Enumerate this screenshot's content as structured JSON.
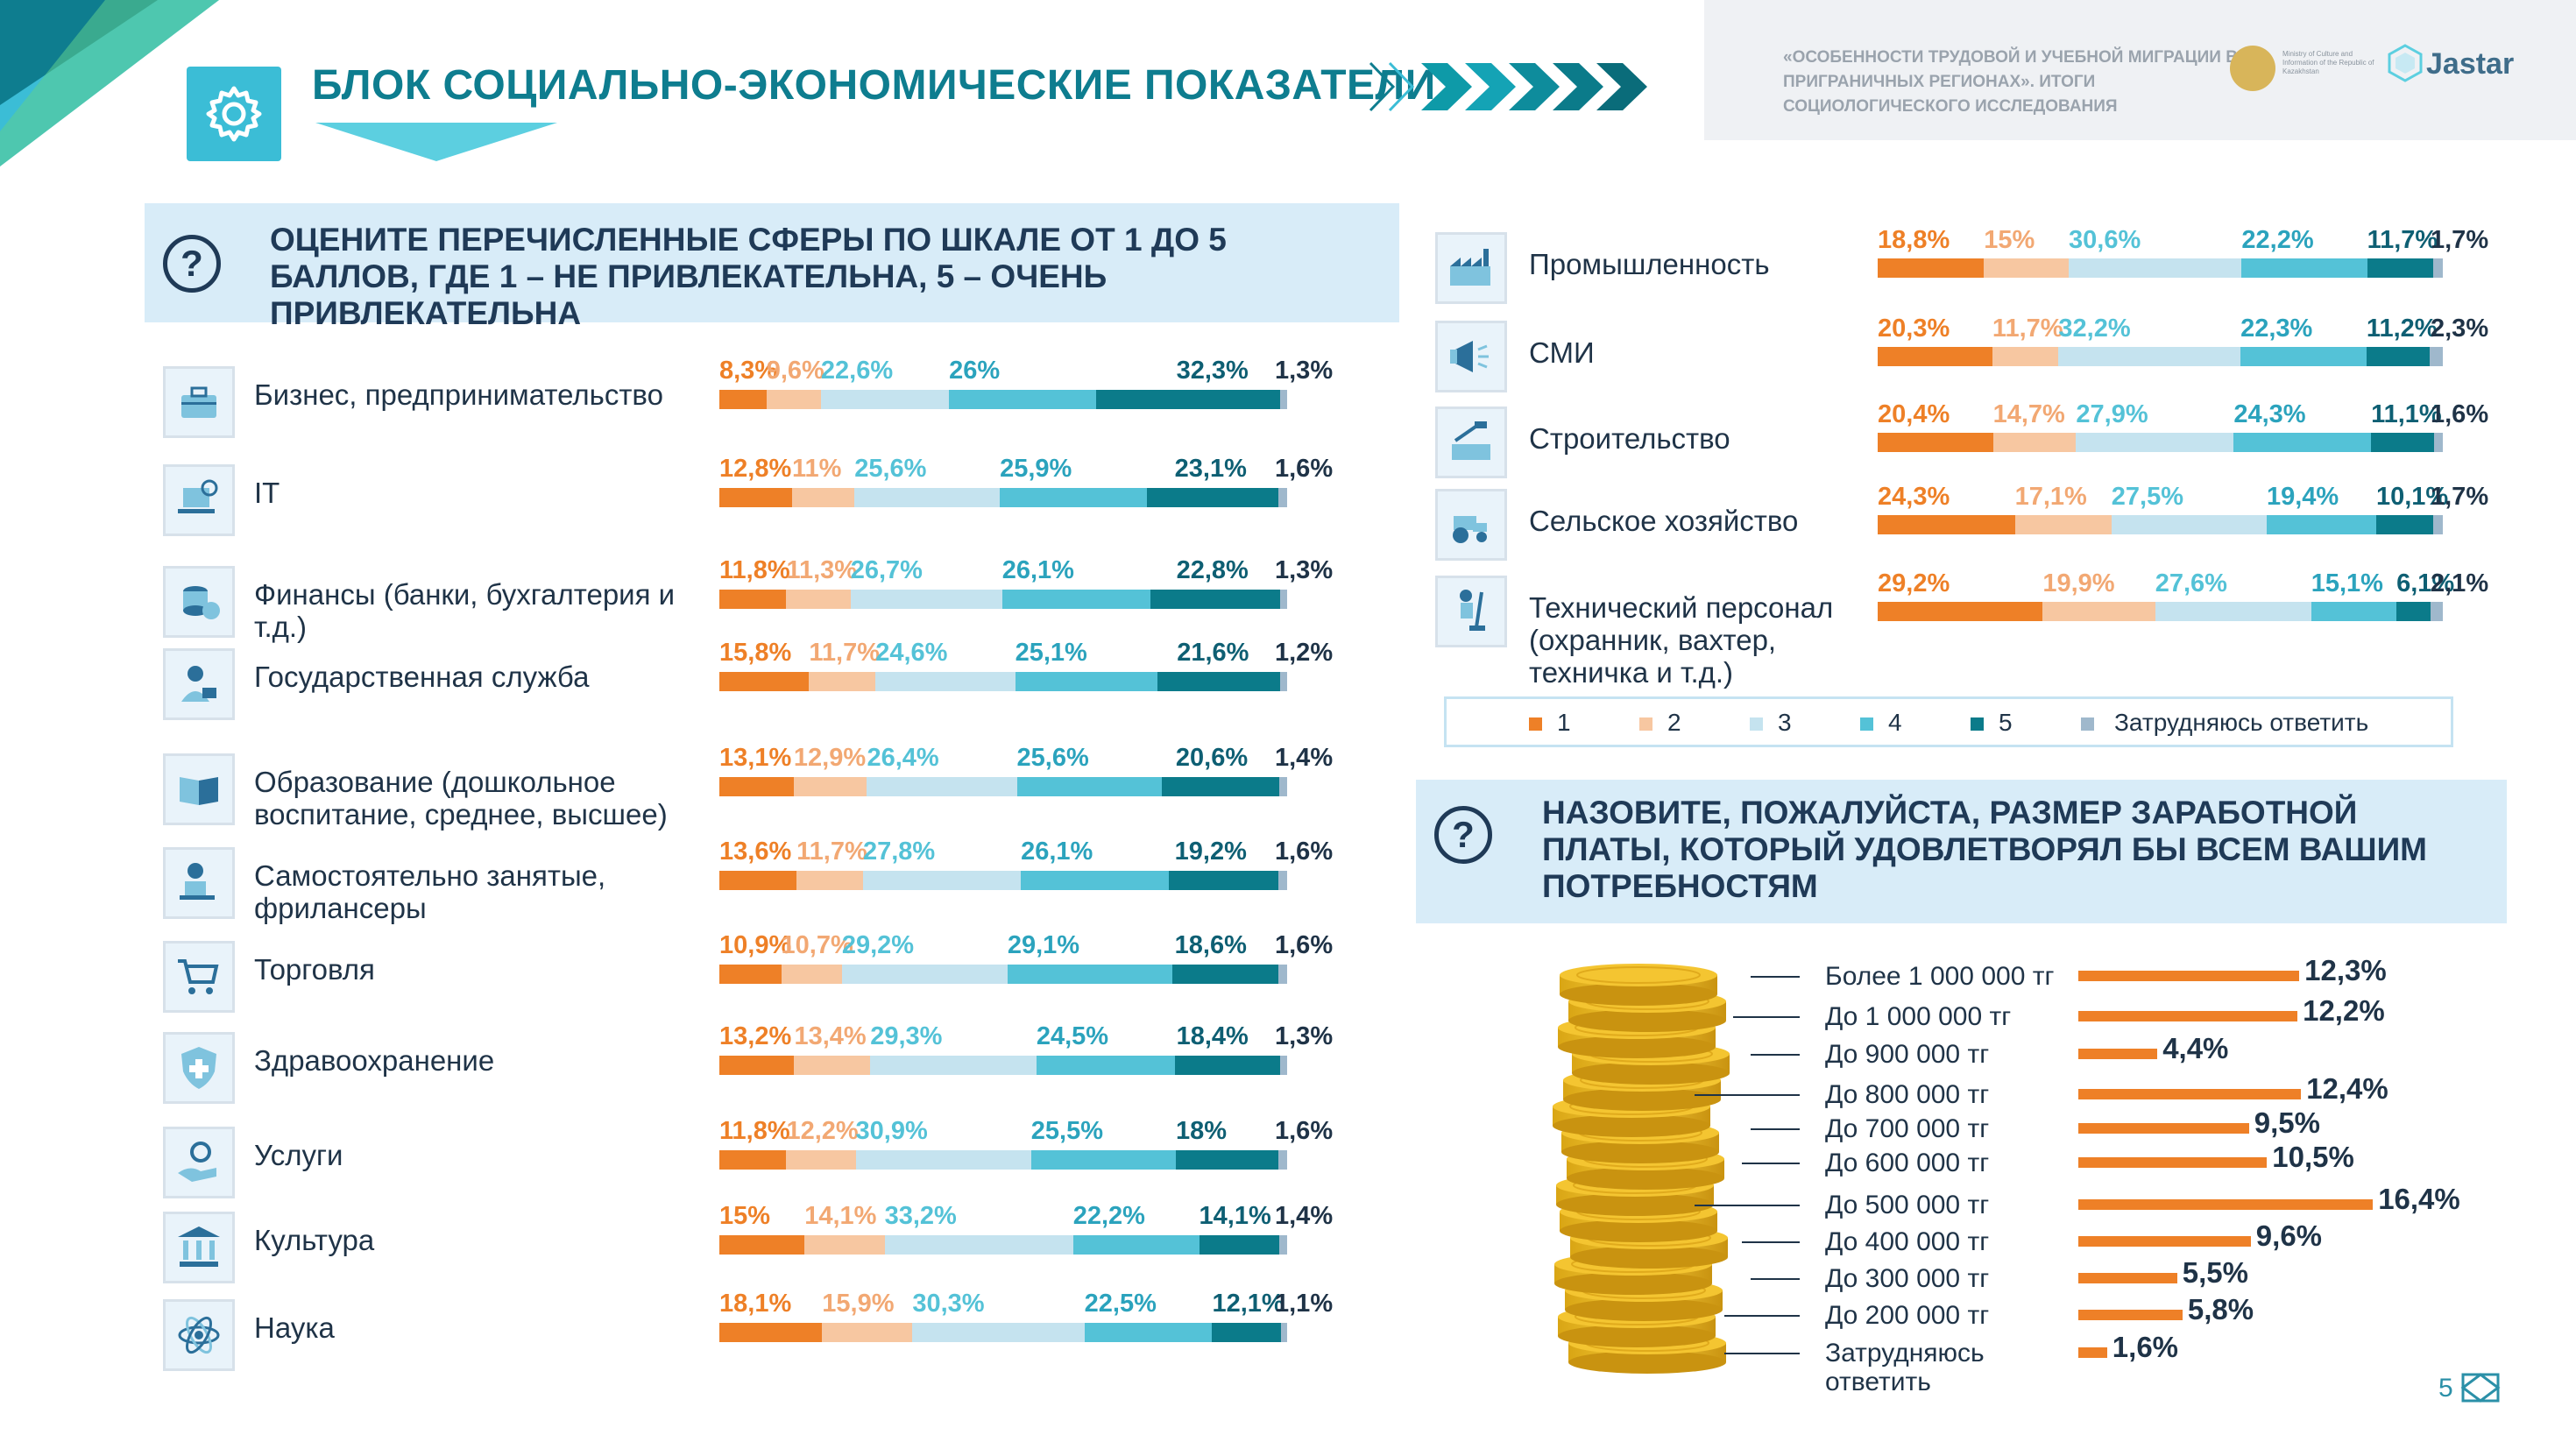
{
  "header": {
    "title": "БЛОК СОЦИАЛЬНО-ЭКОНОМИЧЕСКИЕ ПОКАЗАТЕЛИ",
    "brand_text": "«ОСОБЕННОСТИ ТРУДОВОЙ И УЧЕБНОЙ МИГРАЦИИ В ПРИГРАНИЧНЫХ РЕГИОНАХ». ИТОГИ СОЦИОЛОГИЧЕСКОГО ИССЛЕДОВАНИЯ",
    "emblem_text": "Ministry of Culture and Information of the Republic of Kazakhstan",
    "logo_text": "Jastar"
  },
  "question1": {
    "mark": "?",
    "text": "ОЦЕНИТЕ ПЕРЕЧИСЛЕННЫЕ СФЕРЫ ПО ШКАЛЕ ОТ 1 ДО 5 БАЛЛОВ, ГДЕ 1 – НЕ ПРИВЛЕКАТЕЛЬНА, 5 – ОЧЕНЬ ПРИВЛЕКАТЕЛЬНА"
  },
  "question2": {
    "mark": "?",
    "text": "НАЗОВИТЕ, ПОЖАЛУЙСТА, РАЗМЕР ЗАРАБОТНОЙ ПЛАТЫ, КОТОРЫЙ УДОВЛЕТВОРЯЛ БЫ ВСЕМ ВАШИМ ПОТРЕБНОСТЯМ"
  },
  "colors": {
    "c1": "#ee8027",
    "c2": "#f7c7a1",
    "c3": "#c5e3ef",
    "c4": "#54c2d7",
    "c5": "#0b7b8a",
    "c6": "#9fb8cc",
    "label1": "#ee8027",
    "label2": "#f2a873",
    "label3": "#54c2d7",
    "label4": "#2ba3bd",
    "label5": "#0e5f73",
    "label6": "#1f3347"
  },
  "legend": [
    "1",
    "2",
    "3",
    "4",
    "5",
    "Затрудняюсь ответить"
  ],
  "chart_data": [
    {
      "type": "bar",
      "stacked": true,
      "orientation": "horizontal",
      "series_names": [
        "1",
        "2",
        "3",
        "4",
        "5",
        "Затрудняюсь ответить"
      ],
      "categories": [
        {
          "name": "Бизнес, предпринимательство",
          "icon": "briefcase-icon",
          "values": [
            8.3,
            9.6,
            22.6,
            26,
            32.3,
            1.3
          ],
          "labels": [
            "8,3%",
            "9,6%",
            "22,6%",
            "26%",
            "32,3%",
            "1,3%"
          ]
        },
        {
          "name": "IT",
          "icon": "laptop-gear-icon",
          "values": [
            12.8,
            11,
            25.6,
            25.9,
            23.1,
            1.6
          ],
          "labels": [
            "12,8%",
            "11%",
            "25,6%",
            "25,9%",
            "23,1%",
            "1,6%"
          ]
        },
        {
          "name": "Финансы (банки, бухгалтерия и т.д.)",
          "icon": "coins-icon",
          "values": [
            11.8,
            11.3,
            26.7,
            26.1,
            22.8,
            1.3
          ],
          "labels": [
            "11,8%",
            "11,3%",
            "26,7%",
            "26,1%",
            "22,8%",
            "1,3%"
          ]
        },
        {
          "name": "Государственная служба",
          "icon": "official-icon",
          "values": [
            15.8,
            11.7,
            24.6,
            25.1,
            21.6,
            1.2
          ],
          "labels": [
            "15,8%",
            "11,7%",
            "24,6%",
            "25,1%",
            "21,6%",
            "1,2%"
          ]
        },
        {
          "name": "Образование (дошкольное воспитание, среднее, высшее)",
          "icon": "book-icon",
          "values": [
            13.1,
            12.9,
            26.4,
            25.6,
            20.6,
            1.4
          ],
          "labels": [
            "13,1%",
            "12,9%",
            "26,4%",
            "25,6%",
            "20,6%",
            "1,4%"
          ]
        },
        {
          "name": "Самостоятельно занятые, фрилансеры",
          "icon": "freelancer-icon",
          "values": [
            13.6,
            11.7,
            27.8,
            26.1,
            19.2,
            1.6
          ],
          "labels": [
            "13,6%",
            "11,7%",
            "27,8%",
            "26,1%",
            "19,2%",
            "1,6%"
          ]
        },
        {
          "name": "Торговля",
          "icon": "cart-icon",
          "values": [
            10.9,
            10.7,
            29.2,
            29.1,
            18.6,
            1.6
          ],
          "labels": [
            "10,9%",
            "10,7%",
            "29,2%",
            "29,1%",
            "18,6%",
            "1,6%"
          ]
        },
        {
          "name": "Здравоохранение",
          "icon": "medical-shield-icon",
          "values": [
            13.2,
            13.4,
            29.3,
            24.5,
            18.4,
            1.3
          ],
          "labels": [
            "13,2%",
            "13,4%",
            "29,3%",
            "24,5%",
            "18,4%",
            "1,3%"
          ]
        },
        {
          "name": "Услуги",
          "icon": "service-hand-icon",
          "values": [
            11.8,
            12.2,
            30.9,
            25.5,
            18,
            1.6
          ],
          "labels": [
            "11,8%",
            "12,2%",
            "30,9%",
            "25,5%",
            "18%",
            "1,6%"
          ]
        },
        {
          "name": "Культура",
          "icon": "museum-icon",
          "values": [
            15,
            14.1,
            33.2,
            22.2,
            14.1,
            1.4
          ],
          "labels": [
            "15%",
            "14,1%",
            "33,2%",
            "22,2%",
            "14,1%",
            "1,4%"
          ]
        },
        {
          "name": "Наука",
          "icon": "atom-icon",
          "values": [
            18.1,
            15.9,
            30.3,
            22.5,
            12.1,
            1.1
          ],
          "labels": [
            "18,1%",
            "15,9%",
            "30,3%",
            "22,5%",
            "12,1%",
            "1,1%"
          ]
        }
      ]
    },
    {
      "type": "bar",
      "stacked": true,
      "orientation": "horizontal",
      "series_names": [
        "1",
        "2",
        "3",
        "4",
        "5",
        "Затрудняюсь ответить"
      ],
      "categories": [
        {
          "name": "Промышленность",
          "icon": "factory-icon",
          "values": [
            18.8,
            15,
            30.6,
            22.2,
            11.7,
            1.7
          ],
          "labels": [
            "18,8%",
            "15%",
            "30,6%",
            "22,2%",
            "11,7%",
            "1,7%"
          ]
        },
        {
          "name": "СМИ",
          "icon": "megaphone-icon",
          "values": [
            20.3,
            11.7,
            32.2,
            22.3,
            11.2,
            2.3
          ],
          "labels": [
            "20,3%",
            "11,7%",
            "32,2%",
            "22,3%",
            "11,2%",
            "2,3%"
          ]
        },
        {
          "name": "Строительство",
          "icon": "construction-icon",
          "values": [
            20.4,
            14.7,
            27.9,
            24.3,
            11.1,
            1.6
          ],
          "labels": [
            "20,4%",
            "14,7%",
            "27,9%",
            "24,3%",
            "11,1%",
            "1,6%"
          ]
        },
        {
          "name": "Сельское хозяйство",
          "icon": "tractor-icon",
          "values": [
            24.3,
            17.1,
            27.5,
            19.4,
            10.1,
            1.7
          ],
          "labels": [
            "24,3%",
            "17,1%",
            "27,5%",
            "19,4%",
            "10,1%",
            "1,7%"
          ]
        },
        {
          "name": "Технический персонал (охранник, вахтер, техничка и т.д.)",
          "icon": "cleaner-icon",
          "values": [
            29.2,
            19.9,
            27.6,
            15.1,
            6.1,
            2.1
          ],
          "labels": [
            "29,2%",
            "19,9%",
            "27,6%",
            "15,1%",
            "6,1%",
            "2,1%"
          ]
        }
      ]
    },
    {
      "type": "bar",
      "orientation": "horizontal",
      "categories": [
        "Более 1 000 000 тг",
        "До 1 000 000 тг",
        "До 900 000 тг",
        "До 800 000 тг",
        "До 700 000 тг",
        "До 600 000 тг",
        "До 500 000 тг",
        "До 400 000 тг",
        "До 300 000 тг",
        "До 200 000 тг",
        "Затрудняюсь ответить"
      ],
      "values": [
        12.3,
        12.2,
        4.4,
        12.4,
        9.5,
        10.5,
        16.4,
        9.6,
        5.5,
        5.8,
        1.6
      ],
      "labels": [
        "12,3%",
        "12,2%",
        "4,4%",
        "12,4%",
        "9,5%",
        "10,5%",
        "16,4%",
        "9,6%",
        "5,5%",
        "5,8%",
        "1,6%"
      ]
    }
  ],
  "page_number": "5"
}
